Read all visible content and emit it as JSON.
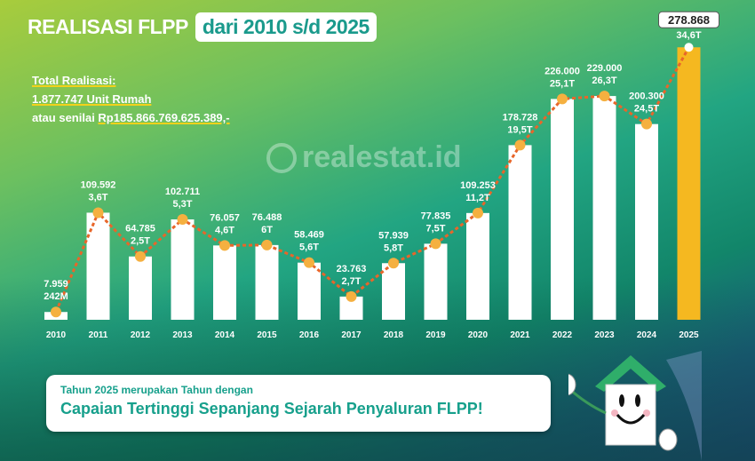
{
  "title": {
    "main": "REALISASI FLPP",
    "highlight": "dari 2010 s/d 2025"
  },
  "summary": {
    "line1": "Total Realisasi:",
    "line2": "1.877.747 Unit Rumah",
    "line3_prefix": "atau senilai ",
    "line3_value": "Rp185.866.769.625.389,-"
  },
  "watermark": "realestat.id",
  "callout": {
    "line1": "Tahun 2025 merupakan Tahun dengan",
    "line2": "Capaian Tertinggi Sepanjang Sejarah Penyaluran FLPP!"
  },
  "colors": {
    "bar": "#ffffff",
    "highlight_bar": "#f5b820",
    "line": "#e8662a",
    "dot": "#f5b040"
  },
  "chart_data": {
    "type": "bar",
    "categories": [
      "2010",
      "2011",
      "2012",
      "2013",
      "2014",
      "2015",
      "2016",
      "2017",
      "2018",
      "2019",
      "2020",
      "2021",
      "2022",
      "2023",
      "2024",
      "2025"
    ],
    "units": [
      7959,
      109592,
      64785,
      102711,
      76057,
      76488,
      58469,
      23763,
      57939,
      77835,
      109253,
      178728,
      226000,
      229000,
      200300,
      278868
    ],
    "unit_labels": [
      "7.959",
      "109.592",
      "64.785",
      "102.711",
      "76.057",
      "76.488",
      "58.469",
      "23.763",
      "57.939",
      "77.835",
      "109.253",
      "178.728",
      "226.000",
      "229.000",
      "200.300",
      "278.868"
    ],
    "value_labels": [
      "242M",
      "3,6T",
      "2,5T",
      "5,3T",
      "4,6T",
      "6T",
      "5,6T",
      "2,7T",
      "5,8T",
      "7,5T",
      "11,2T",
      "19,5T",
      "25,1T",
      "26,3T",
      "24,5T",
      "34,6T"
    ],
    "line_overlay": true,
    "highlight": "2025",
    "ylim": [
      0,
      280000
    ]
  }
}
